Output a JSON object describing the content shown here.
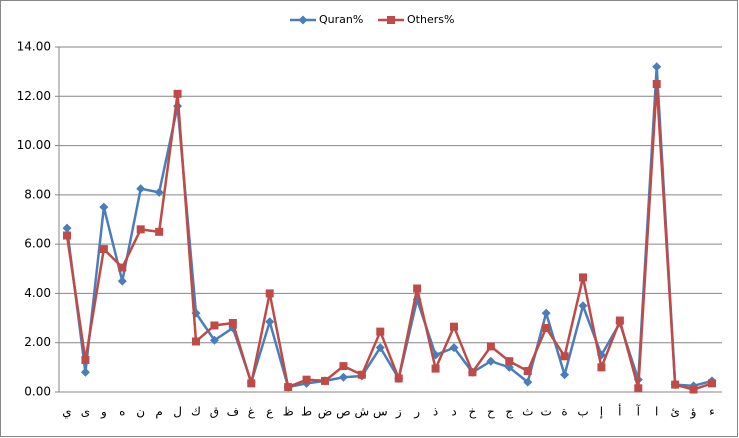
{
  "chart_data": {
    "type": "line",
    "categories": [
      "ي",
      "ى",
      "و",
      "ه",
      "ن",
      "م",
      "ل",
      "ك",
      "ق",
      "ف",
      "غ",
      "ع",
      "ظ",
      "ط",
      "ض",
      "ص",
      "ش",
      "س",
      "ز",
      "ر",
      "ذ",
      "د",
      "خ",
      "ح",
      "ج",
      "ث",
      "ت",
      "ة",
      "ب",
      "إ",
      "أ",
      "آ",
      "ا",
      "ئ",
      "ؤ",
      "ء"
    ],
    "series": [
      {
        "name": "Quran%",
        "color": "#4a7ebb",
        "marker": "diamond",
        "values": [
          6.65,
          0.8,
          7.5,
          4.5,
          8.25,
          8.1,
          11.6,
          3.2,
          2.1,
          2.6,
          0.4,
          2.85,
          0.2,
          0.35,
          0.45,
          0.6,
          0.65,
          1.8,
          0.55,
          3.75,
          1.5,
          1.8,
          0.8,
          1.25,
          1.0,
          0.4,
          3.2,
          0.7,
          3.5,
          1.5,
          2.8,
          0.5,
          13.2,
          0.3,
          0.25,
          0.45
        ]
      },
      {
        "name": "Others%",
        "color": "#be4b48",
        "marker": "square",
        "values": [
          6.35,
          1.3,
          5.8,
          5.05,
          6.6,
          6.5,
          12.1,
          2.05,
          2.7,
          2.8,
          0.35,
          4.0,
          0.2,
          0.5,
          0.45,
          1.05,
          0.7,
          2.45,
          0.55,
          4.2,
          0.95,
          2.65,
          0.8,
          1.85,
          1.25,
          0.85,
          2.6,
          1.45,
          4.65,
          1.0,
          2.9,
          0.15,
          12.5,
          0.3,
          0.1,
          0.35
        ]
      }
    ],
    "ylim": [
      0,
      14
    ],
    "yticks": [
      {
        "value": 0,
        "label": "0.00"
      },
      {
        "value": 2,
        "label": "2.00"
      },
      {
        "value": 4,
        "label": "4.00"
      },
      {
        "value": 6,
        "label": "6.00"
      },
      {
        "value": 8,
        "label": "8.00"
      },
      {
        "value": 10,
        "label": "10.00"
      },
      {
        "value": 12,
        "label": "12.00"
      },
      {
        "value": 14,
        "label": "14.00"
      }
    ],
    "grid": true,
    "legend": "top"
  }
}
